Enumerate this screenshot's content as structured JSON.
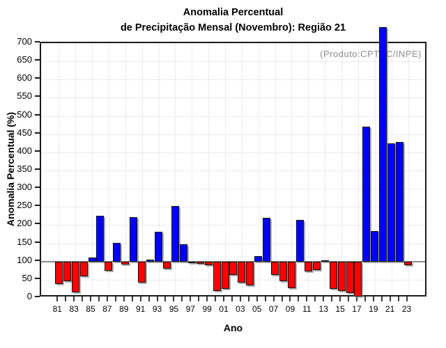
{
  "title": {
    "line1": "Anomalia Percentual",
    "line2": "de Precipitação Mensal (Novembro): Região 21"
  },
  "annotation": "(Produto:CPTEC/INPE)",
  "axes": {
    "y_label": "Anomalia Percentual (%)",
    "x_label": "Ano",
    "y_ticks": [
      0,
      50,
      100,
      150,
      200,
      250,
      300,
      350,
      400,
      450,
      500,
      550,
      600,
      650,
      700
    ],
    "x_tick_labels": [
      "81",
      "83",
      "85",
      "87",
      "89",
      "91",
      "93",
      "95",
      "97",
      "99",
      "01",
      "03",
      "05",
      "07",
      "09",
      "11",
      "13",
      "15",
      "17",
      "19",
      "21",
      "23"
    ]
  },
  "colors": {
    "bar_above_baseline": "#0000ff",
    "bar_below_baseline": "#fe0000",
    "baseline_line": "#8a8a8a",
    "gridline": "#d9d9d9",
    "frame": "#1a1a1a",
    "annotation_text": "#8c8c8c"
  },
  "chart_data": {
    "type": "bar",
    "title": "Anomalia Percentual de Precipitação Mensal (Novembro): Região 21",
    "xlabel": "Ano",
    "ylabel": "Anomalia Percentual (%)",
    "ylim": [
      0,
      700
    ],
    "baseline": 100,
    "grid": "dotted, horizontal every 50 and vertical every 2 years",
    "legend_position": "none",
    "color_rule": "bars with value >= 100 are blue (positive anomaly), bars with value < 100 are red (negative anomaly); bar for 2020 exceeds the 700 axis maximum and overflows the frame",
    "x": [
      1981,
      1982,
      1983,
      1984,
      1985,
      1986,
      1987,
      1988,
      1989,
      1990,
      1991,
      1992,
      1993,
      1994,
      1995,
      1996,
      1997,
      1998,
      1999,
      2000,
      2001,
      2002,
      2003,
      2004,
      2005,
      2006,
      2007,
      2008,
      2009,
      2010,
      2011,
      2012,
      2013,
      2014,
      2015,
      2016,
      2017,
      2018,
      2019,
      2020,
      2021,
      2022,
      2023
    ],
    "values": [
      38,
      45,
      15,
      59,
      110,
      225,
      74,
      152,
      92,
      222,
      43,
      106,
      182,
      80,
      253,
      147,
      99,
      93,
      90,
      19,
      25,
      64,
      43,
      35,
      115,
      220,
      64,
      45,
      26,
      215,
      72,
      77,
      104,
      25,
      20,
      13,
      4,
      470,
      183,
      744,
      425,
      428,
      89
    ]
  }
}
